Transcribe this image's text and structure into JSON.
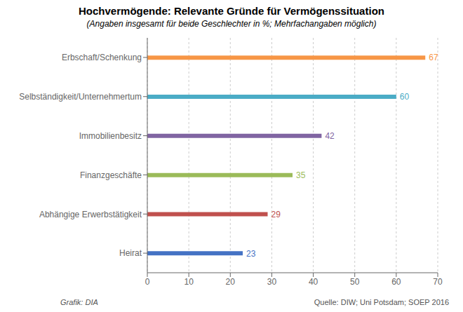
{
  "chart_data": {
    "type": "bar",
    "orientation": "horizontal",
    "title": "Hochvermögende: Relevante Gründe für Vermögenssituation",
    "subtitle": "(Angaben insgesamt für beide Geschlechter in %; Mehrfachangaben möglich)",
    "categories": [
      "Heirat",
      "Abhängige Erwerbstätigkeit",
      "Finanzgeschäfte",
      "Immobilienbesitz",
      "Selbständigkeit/Unternehmertum",
      "Erbschaft/Schenkung"
    ],
    "values": [
      23,
      29,
      35,
      42,
      60,
      67
    ],
    "colors": [
      "#4472c4",
      "#c0504d",
      "#9bbb59",
      "#8064a2",
      "#4bacc6",
      "#f79646"
    ],
    "xlim": [
      0,
      70
    ],
    "xticks": [
      0,
      10,
      20,
      30,
      40,
      50,
      60,
      70
    ],
    "grid": true,
    "data_labels": true,
    "annotations": [
      "Grafik: DIA",
      "Quelle: DIW; Uni Potsdam; SOEP 2016"
    ]
  }
}
